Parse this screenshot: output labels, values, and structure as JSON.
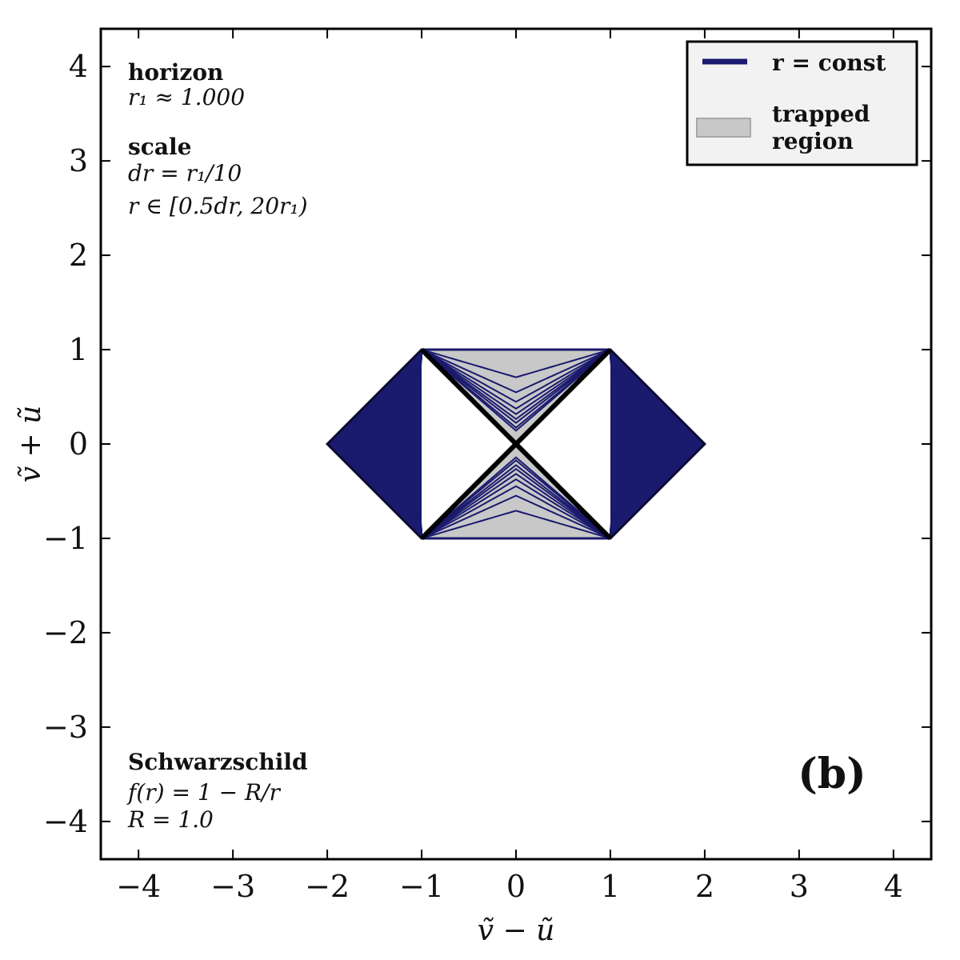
{
  "chart_data": {
    "type": "line",
    "title": "",
    "xlabel": "ṽ − ũ",
    "ylabel": "ṽ + ũ",
    "xlim": [
      -4.4,
      4.4
    ],
    "ylim": [
      -4.4,
      4.4
    ],
    "xticks": [
      -4,
      -3,
      -2,
      -1,
      0,
      1,
      2,
      3,
      4
    ],
    "yticks": [
      -4,
      -3,
      -2,
      -1,
      0,
      1,
      2,
      3,
      4
    ],
    "xtick_labels": [
      "−4",
      "−3",
      "−2",
      "−1",
      "0",
      "1",
      "2",
      "3",
      "4"
    ],
    "ytick_labels": [
      "−4",
      "−3",
      "−2",
      "−1",
      "0",
      "1",
      "2",
      "3",
      "4"
    ],
    "grid": false,
    "legend": {
      "placement": "top-right",
      "entries": [
        {
          "label": "r = const",
          "kind": "line",
          "color": "#1a1a6e"
        },
        {
          "label_lines": [
            "trapped",
            "region"
          ],
          "kind": "patch",
          "color": "#c8c8c8"
        }
      ]
    },
    "colors": {
      "curves": "#1a1a6e",
      "trapped": "#c8c8c8",
      "horizon": "#000000"
    },
    "hexagon_vertices": [
      [
        -2,
        0
      ],
      [
        -1,
        1
      ],
      [
        1,
        1
      ],
      [
        2,
        0
      ],
      [
        1,
        -1
      ],
      [
        -1,
        -1
      ]
    ],
    "horizon_lines": [
      [
        [
          -1,
          -1
        ],
        [
          1,
          1
        ]
      ],
      [
        [
          -1,
          1
        ],
        [
          1,
          -1
        ]
      ]
    ],
    "trapped_region": [
      [
        [
          -1,
          1
        ],
        [
          1,
          1
        ],
        [
          0,
          0
        ]
      ],
      [
        [
          -1,
          -1
        ],
        [
          1,
          -1
        ],
        [
          0,
          0
        ]
      ]
    ],
    "series": [
      {
        "name": "r = const",
        "region": "interior",
        "count": 9,
        "values": [
          0.5,
          0.3,
          0.2,
          0.14,
          0.1,
          0.07,
          0.05,
          0.03,
          0.02
        ]
      },
      {
        "name": "r = const",
        "region": "exterior",
        "count": 19,
        "values": [
          0.6,
          0.45,
          0.34,
          0.26,
          0.2,
          0.15,
          0.11,
          0.08,
          0.06,
          0.045,
          0.035,
          0.027,
          0.021,
          0.016,
          0.012,
          0.009,
          0.007,
          0.005,
          0.003
        ]
      }
    ],
    "annotations": {
      "horizon_title": "horizon",
      "horizon_value": "r₁ ≈ 1.000",
      "scale_title": "scale",
      "scale_dr": "dr = r₁/10",
      "scale_range": "r ∈ [0.5dr, 20r₁)",
      "metric_title": "Schwarzschild",
      "metric_f": "f(r) = 1 − R/r",
      "metric_R": "R = 1.0",
      "panel": "(b)"
    }
  }
}
